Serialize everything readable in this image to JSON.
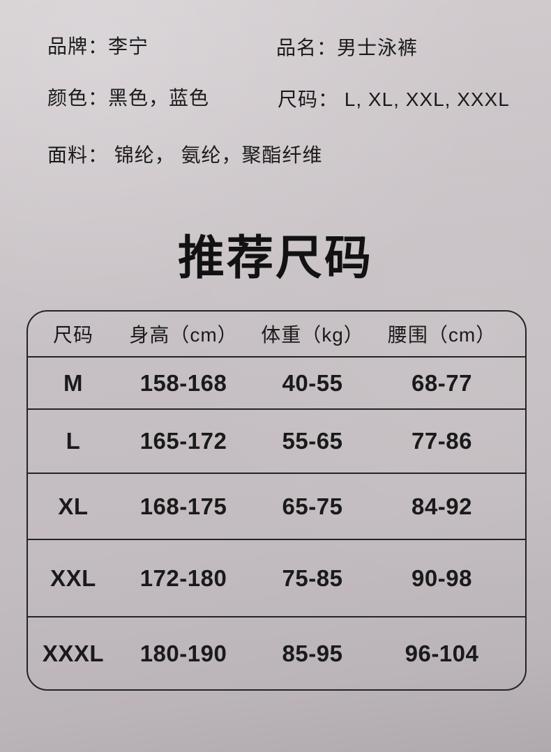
{
  "page": {
    "background_color": "#c7c0c4",
    "background_top": "#d3cdd0",
    "background_bottom": "#b0a9ad",
    "text_color": "#1a1a1a",
    "border_color": "#242424"
  },
  "info": {
    "brand": "品牌：李宁",
    "product_name": "品名：男士泳裤",
    "color": "颜色：黑色，蓝色",
    "sizes": "尺码： L, XL, XXL, XXXL",
    "fabric": "面料： 锦纶， 氨纶，聚酯纤维"
  },
  "size_table": {
    "title": "推荐尺码",
    "columns": [
      "尺码",
      "身高（cm）",
      "体重（kg）",
      "腰围（cm）"
    ],
    "rows": [
      [
        "M",
        "158-168",
        "40-55",
        "68-77"
      ],
      [
        "L",
        "165-172",
        "55-65",
        "77-86"
      ],
      [
        "XL",
        "168-175",
        "65-75",
        "84-92"
      ],
      [
        "XXL",
        "172-180",
        "75-85",
        "90-98"
      ],
      [
        "XXXL",
        "180-190",
        "85-95",
        "96-104"
      ]
    ]
  }
}
